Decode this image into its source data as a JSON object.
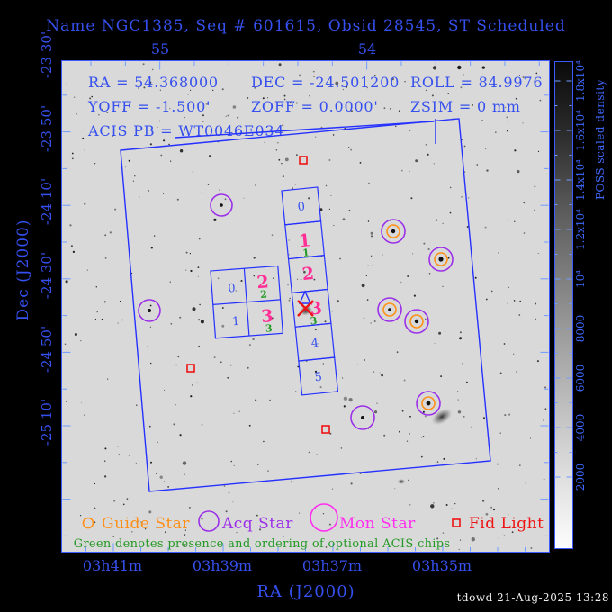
{
  "title": "Name NGC1385, Seq # 601615, Obsid 28545, ST Scheduled",
  "info": {
    "ra": "RA = 54.368000",
    "dec": "DEC = -24.501200",
    "roll": "ROLL = 84.9976",
    "yoff": "YOFF = -1.500'",
    "zoff": "ZOFF = 0.0000'",
    "zsim": "ZSIM = 0 mm",
    "acis_pb": "ACIS PB = WT0046E034"
  },
  "axes": {
    "x_label": "RA (J2000)",
    "y_label": "Dec (J2000)",
    "top_ticks": [
      "55",
      "54"
    ],
    "bottom_ticks": [
      "03h41m",
      "03h39m",
      "03h37m",
      "03h35m"
    ],
    "left_ticks": [
      "-23 30'",
      "-23 50'",
      "-24 10'",
      "-24 30'",
      "-24 50'",
      "-25 10'"
    ]
  },
  "field": {
    "s_chips": [
      {
        "main": "0",
        "opt": ""
      },
      {
        "main": "1",
        "opt": "1"
      },
      {
        "main": "2",
        "opt": ""
      },
      {
        "main": "3",
        "opt": "3"
      },
      {
        "main": "4",
        "opt": ""
      },
      {
        "main": "5",
        "opt": ""
      }
    ],
    "i_chips": [
      {
        "main": "0",
        "opt": ""
      },
      {
        "main": "2",
        "opt": "2"
      },
      {
        "main": "1",
        "opt": ""
      },
      {
        "main": "3",
        "opt": "3"
      }
    ]
  },
  "legend": {
    "guide": "Guide Star",
    "acq": "Acq Star",
    "mon": "Mon Star",
    "fid": "Fid Light"
  },
  "footnote": "Green denotes presence and ordering of optional ACIS chips",
  "colorbar": {
    "label": "POSS scaled density",
    "ticks": [
      "2000",
      "4000",
      "6000",
      "8000",
      "10⁴",
      "1.2x10⁴",
      "1.4x10⁴",
      "1.6x10⁴",
      "1.8x10⁴"
    ]
  },
  "credit": "tdowd 21-Aug-2025 13:28",
  "colors": {
    "text_blue": "#3550ee",
    "tick_text_blue": "#3f68ff",
    "frame_blue": "#3d5aff",
    "tick_blue": "#6f9aff",
    "fov_blue": "#2531ff",
    "pink": "#ff2f95",
    "green": "#259925",
    "orange": "#ff9017",
    "purple": "#9b30e8",
    "magenta": "#ff2ef0",
    "red": "#ee1414",
    "sky_bg": "#d9d9d9",
    "credit_white": "#f0f0f0"
  }
}
